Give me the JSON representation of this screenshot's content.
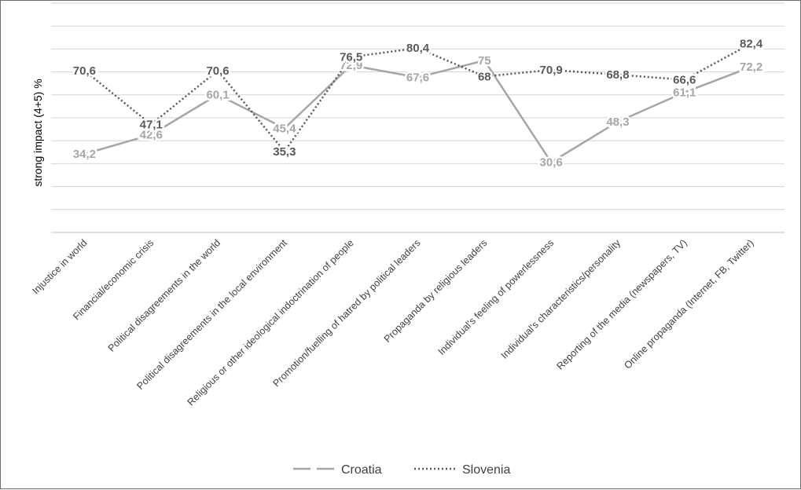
{
  "chart_data": {
    "type": "line",
    "ylabel": "strong impact (4+5) %",
    "ylim": [
      0,
      100
    ],
    "grid": true,
    "legend_position": "bottom",
    "categories": [
      "Injustice in world",
      "Financial/economic crisis",
      "Political disagreements in the world",
      "Political disagreements in the local environment",
      "Religious or other ideological indoctrination of people",
      "Promotion/fuelling of hatred by political leaders",
      "Propaganda by religious leaders",
      "Individual's feeling of powerlessness",
      "Individual's characteristics/personality",
      "Reporting of the media (newspapers, TV)",
      "Online propaganda (Internet, FB, Twitter)"
    ],
    "series": [
      {
        "name": "Croatia",
        "color": "#a6a6a6",
        "style": "dashed",
        "values": [
          34.2,
          42.6,
          60.1,
          45.4,
          72.9,
          67.6,
          75,
          30.6,
          48.3,
          61.1,
          72.2
        ],
        "labels": [
          "34,2",
          "42,6",
          "60,1",
          "45,4",
          "72,9",
          "67,6",
          "75",
          "30,6",
          "48,3",
          "61,1",
          "72,2"
        ]
      },
      {
        "name": "Slovenia",
        "color": "#595959",
        "style": "dotted",
        "values": [
          70.6,
          47.1,
          70.6,
          35.3,
          76.5,
          80.4,
          68,
          70.9,
          68.8,
          66.6,
          82.4
        ],
        "labels": [
          "70,6",
          "47,1",
          "70,6",
          "35,3",
          "76,5",
          "80,4",
          "68",
          "70,9",
          "68,8",
          "66,6",
          "82,4"
        ]
      }
    ]
  }
}
